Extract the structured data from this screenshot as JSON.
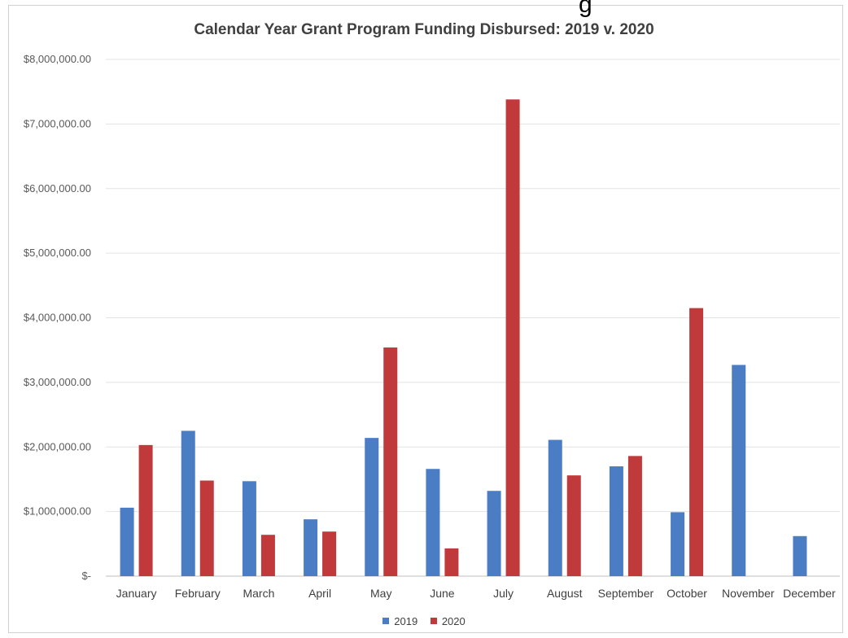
{
  "header_fragment": "g",
  "chart_data": {
    "type": "bar",
    "title": "Calendar Year Grant Program Funding Disbursed: 2019 v. 2020",
    "xlabel": "",
    "ylabel": "",
    "categories": [
      "January",
      "February",
      "March",
      "April",
      "May",
      "June",
      "July",
      "August",
      "September",
      "October",
      "November",
      "December"
    ],
    "series": [
      {
        "name": "2019",
        "color": "#4a7dc4",
        "values": [
          1060000,
          2250000,
          1470000,
          880000,
          2140000,
          1660000,
          1320000,
          2110000,
          1700000,
          990000,
          3270000,
          620000
        ]
      },
      {
        "name": "2020",
        "color": "#c0393b",
        "values": [
          2030000,
          1480000,
          640000,
          690000,
          3540000,
          430000,
          7380000,
          1560000,
          1860000,
          4150000,
          0,
          0
        ]
      }
    ],
    "ylim": [
      0,
      8000000
    ],
    "yticks": [
      {
        "value": 0,
        "label": "$-"
      },
      {
        "value": 1000000,
        "label": "$1,000,000.00"
      },
      {
        "value": 2000000,
        "label": "$2,000,000.00"
      },
      {
        "value": 3000000,
        "label": "$3,000,000.00"
      },
      {
        "value": 4000000,
        "label": "$4,000,000.00"
      },
      {
        "value": 5000000,
        "label": "$5,000,000.00"
      },
      {
        "value": 6000000,
        "label": "$6,000,000.00"
      },
      {
        "value": 7000000,
        "label": "$7,000,000.00"
      },
      {
        "value": 8000000,
        "label": "$8,000,000.00"
      }
    ],
    "grid": true,
    "legend_position": "bottom"
  }
}
